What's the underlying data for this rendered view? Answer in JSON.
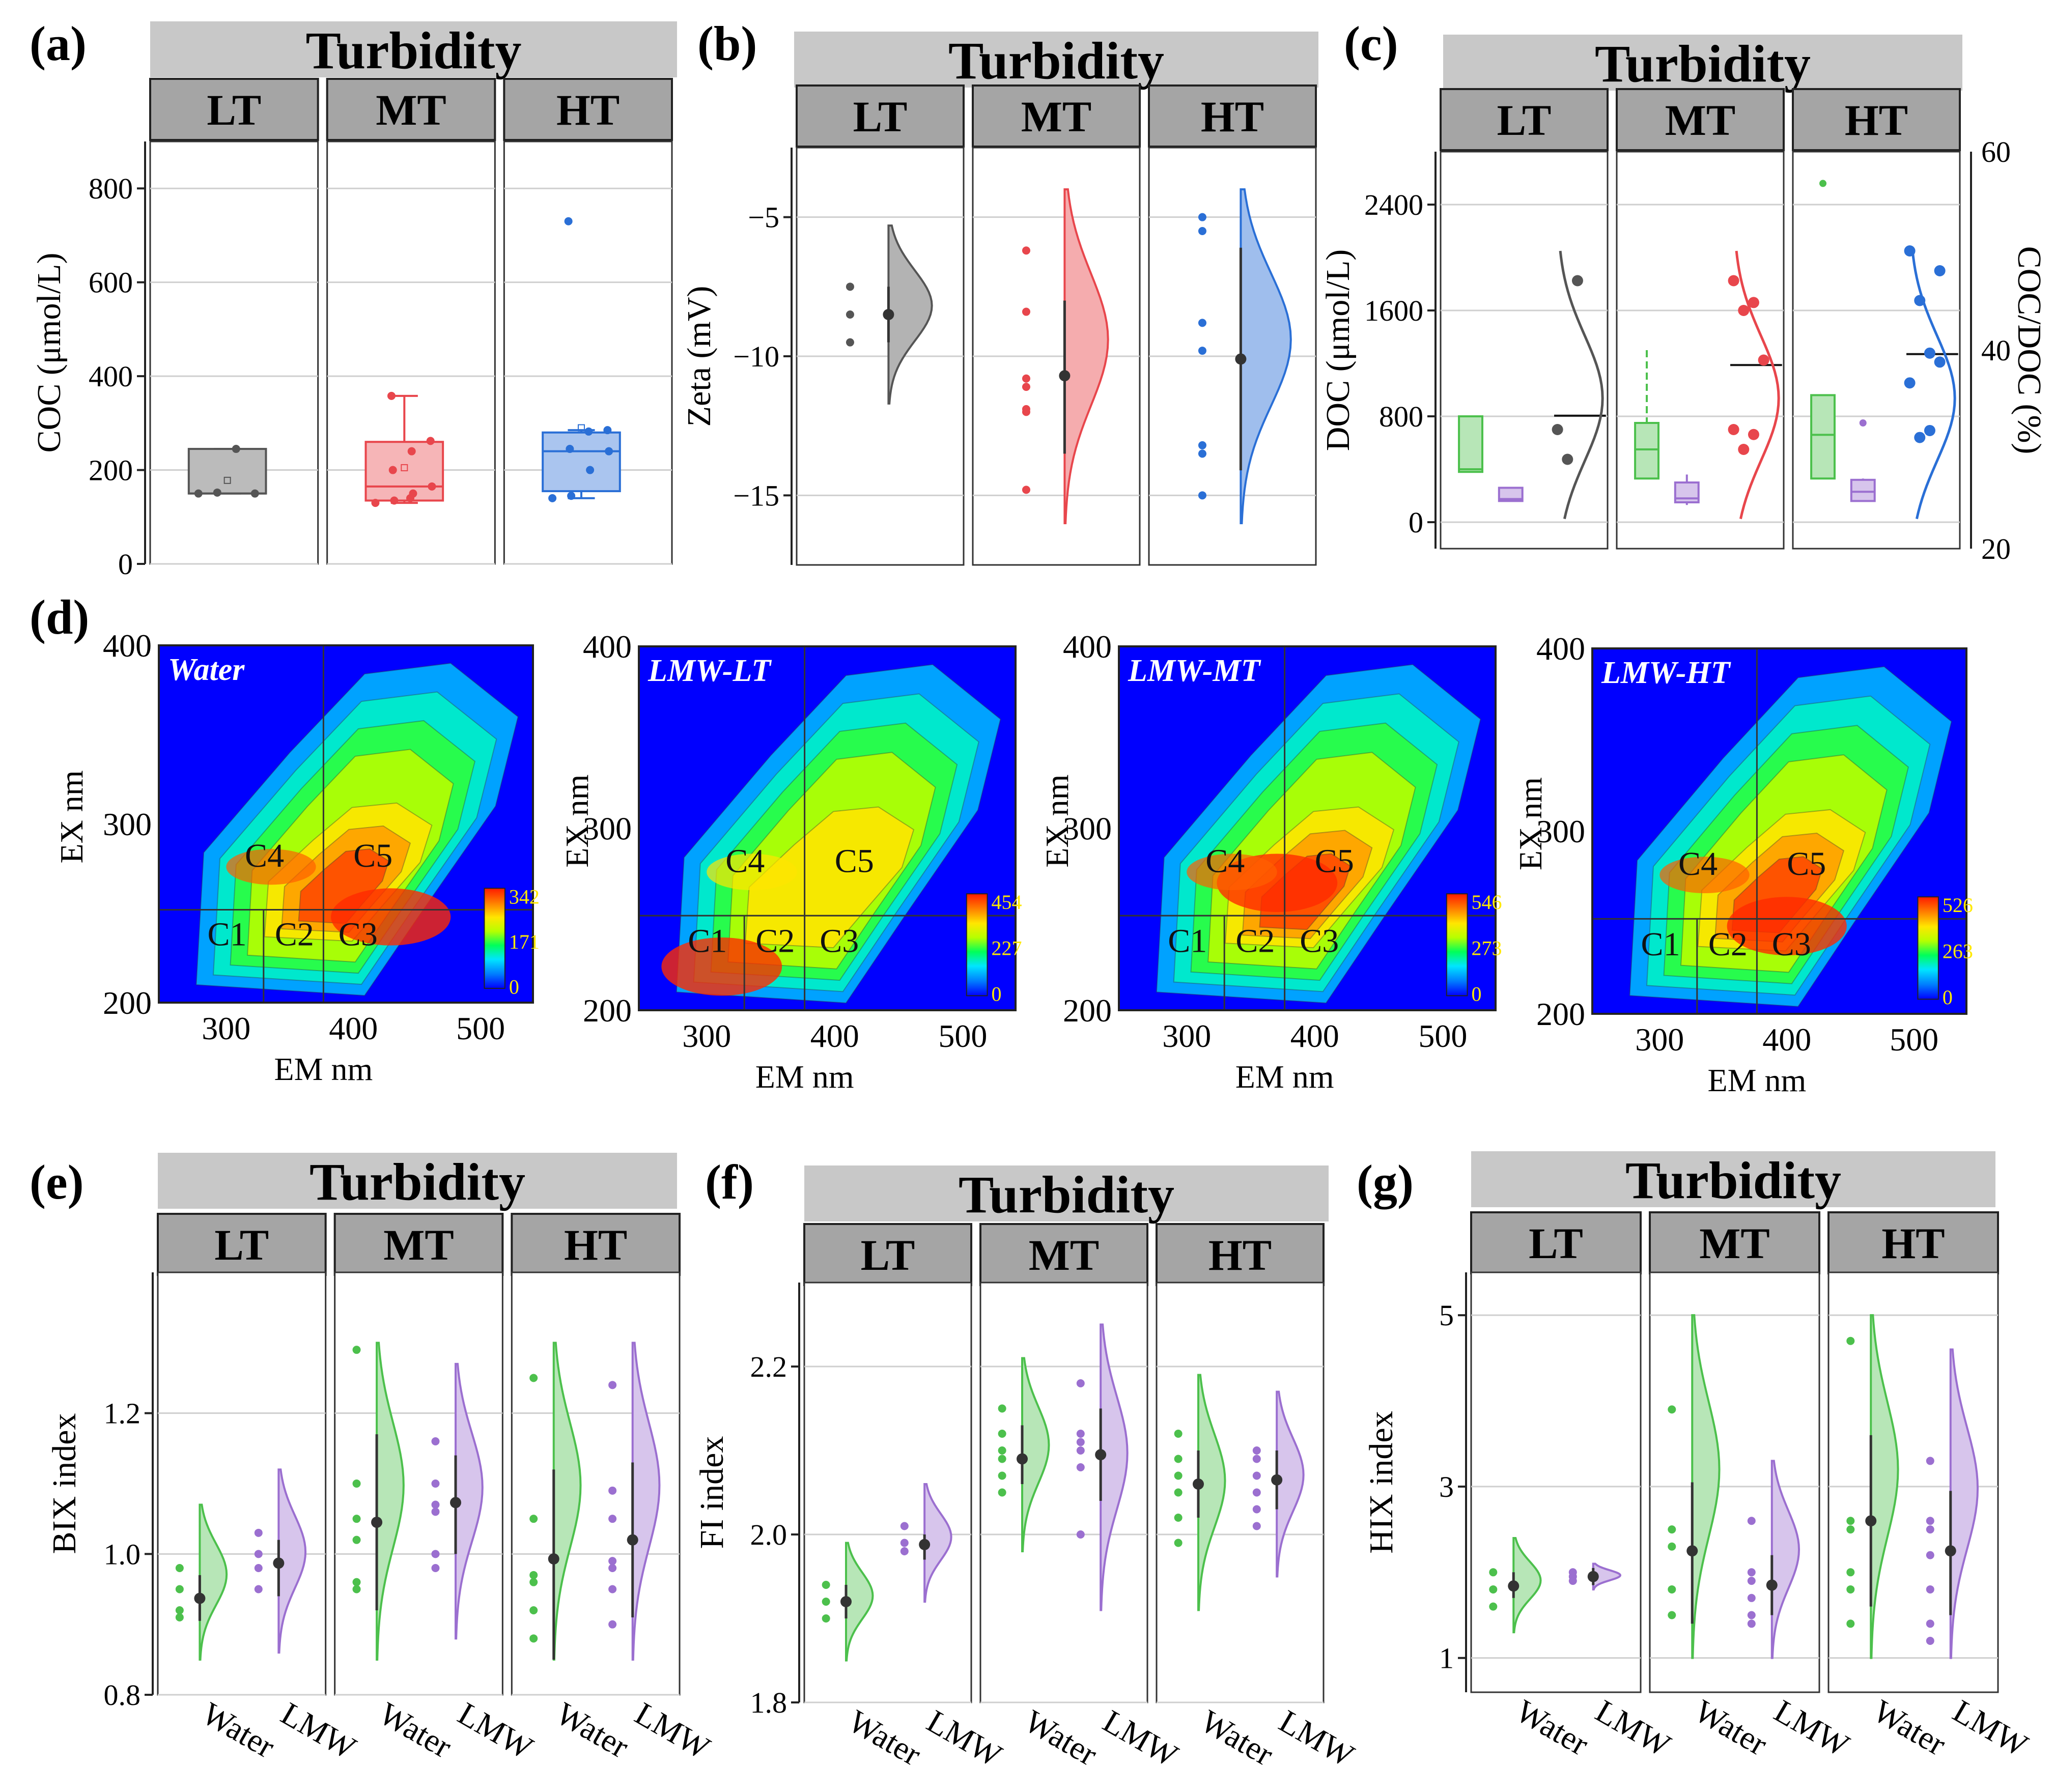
{
  "figure": {
    "strip_title": "Turbidity",
    "facets": [
      "LT",
      "MT",
      "HT"
    ],
    "x_categories": [
      "Water",
      "LMW"
    ]
  },
  "colors": {
    "LT": "#555555",
    "MT": "#e8464c",
    "HT": "#2a6fd6",
    "Water": "#4cc04c",
    "LMW": "#9b6fd0",
    "strip_bg": "#c8c8c8",
    "facet_bg": "#a5a5a5"
  },
  "chart_data": [
    {
      "id": "a",
      "panel_label": "(a)",
      "type": "box",
      "ylabel": "COC (μmol/L)",
      "ylim": [
        0,
        900
      ],
      "yticks": [
        0,
        200,
        400,
        600,
        800
      ],
      "groups": [
        {
          "facet": "LT",
          "q1": 150,
          "median": 150,
          "q3": 245,
          "whisker_low": 150,
          "whisker_high": 245,
          "mean": 178,
          "points": [
            150,
            152,
            245,
            150
          ]
        },
        {
          "facet": "MT",
          "q1": 135,
          "median": 165,
          "q3": 260,
          "whisker_low": 130,
          "whisker_high": 358,
          "mean": 205,
          "points": [
            130,
            135,
            150,
            165,
            200,
            240,
            262,
            358,
            140
          ]
        },
        {
          "facet": "HT",
          "q1": 155,
          "median": 240,
          "q3": 280,
          "whisker_low": 140,
          "whisker_high": 285,
          "mean": 290,
          "points": [
            140,
            145,
            200,
            240,
            245,
            282,
            285,
            730
          ]
        }
      ]
    },
    {
      "id": "b",
      "panel_label": "(b)",
      "type": "half-violin",
      "ylabel": "Zeta (mV)",
      "ylim": [
        -17.5,
        -2.5
      ],
      "yticks": [
        -15,
        -10,
        -5
      ],
      "groups": [
        {
          "facet": "LT",
          "points": [
            -7.5,
            -8.5,
            -9.5
          ],
          "mean": -8.5,
          "ci": [
            -7.5,
            -9.5
          ],
          "range": [
            -5.3,
            -11.7
          ]
        },
        {
          "facet": "MT",
          "points": [
            -6.2,
            -8.4,
            -10.8,
            -11.1,
            -11.9,
            -12.0,
            -14.8
          ],
          "mean": -10.7,
          "ci": [
            -8.0,
            -13.5
          ],
          "range": [
            -4.0,
            -16.0
          ]
        },
        {
          "facet": "HT",
          "points": [
            -5.0,
            -5.5,
            -8.8,
            -9.8,
            -13.2,
            -13.5,
            -15.0
          ],
          "mean": -10.1,
          "ci": [
            -6.1,
            -14.1
          ],
          "range": [
            -4.0,
            -16.0
          ]
        }
      ]
    },
    {
      "id": "c",
      "panel_label": "(c)",
      "type": "box+density",
      "ylabel": "DOC (μmol/L)",
      "ylabel_right": "COC/DOC (%)",
      "ylim": [
        -200,
        2800
      ],
      "yticks": [
        0,
        800,
        1600,
        2400
      ],
      "y2lim": [
        20,
        60
      ],
      "y2ticks": [
        20,
        40,
        60
      ],
      "groups": [
        {
          "facet": "LT",
          "water": {
            "q1": 380,
            "median": 400,
            "q3": 800,
            "low": 380,
            "high": 800,
            "mean": 520
          },
          "lmw": {
            "q1": 160,
            "median": 175,
            "q3": 260,
            "low": 160,
            "high": 260
          },
          "ratio_points": [
            32,
            29,
            47
          ],
          "ratio_mean": 33.4
        },
        {
          "facet": "MT",
          "water": {
            "q1": 330,
            "median": 550,
            "q3": 750,
            "low": 330,
            "high": 1300,
            "mean": 640
          },
          "lmw": {
            "q1": 150,
            "median": 180,
            "q3": 300,
            "low": 130,
            "high": 360
          },
          "ratio_points": [
            47,
            44,
            44.8,
            39,
            32,
            30,
            31.5
          ],
          "ratio_mean": 38.5
        },
        {
          "facet": "HT",
          "water": {
            "q1": 330,
            "median": 660,
            "q3": 960,
            "low": 330,
            "high": 960,
            "mean": 820
          },
          "lmw": {
            "q1": 160,
            "median": 230,
            "q3": 320,
            "low": 160,
            "high": 330
          },
          "outliers_water": [
            2560
          ],
          "outliers_lmw": [
            750
          ],
          "ratio_points": [
            50,
            45,
            39.7,
            38.8,
            36.7,
            31.2,
            31.9,
            48
          ],
          "ratio_mean": 39.6
        }
      ]
    },
    {
      "id": "d",
      "panel_label": "(d)",
      "type": "heatmap",
      "xlabel": "EM nm",
      "ylabel": "EX nm",
      "xticks": [
        300,
        400,
        500
      ],
      "yticks": [
        200,
        300,
        400
      ],
      "maps": [
        {
          "title": "Water",
          "cbar": [
            "342",
            "171",
            "0"
          ],
          "components": [
            "C1",
            "C2",
            "C3",
            "C4",
            "C5"
          ]
        },
        {
          "title": "LMW-LT",
          "cbar": [
            "454",
            "227",
            "0"
          ],
          "components": [
            "C1",
            "C2",
            "C3",
            "C4",
            "C5"
          ]
        },
        {
          "title": "LMW-MT",
          "cbar": [
            "546",
            "273",
            "0"
          ],
          "components": [
            "C1",
            "C2",
            "C3",
            "C4",
            "C5"
          ]
        },
        {
          "title": "LMW-HT",
          "cbar": [
            "526",
            "263",
            "0"
          ],
          "components": [
            "C1",
            "C2",
            "C3",
            "C4",
            "C5"
          ]
        }
      ]
    },
    {
      "id": "e",
      "panel_label": "(e)",
      "type": "half-violin",
      "ylabel": "BIX index",
      "ylim": [
        0.8,
        1.4
      ],
      "yticks": [
        0.8,
        1.0,
        1.2
      ],
      "ytick_labels": [
        "0.8",
        "1.0",
        "1.2"
      ],
      "groups": [
        {
          "facet": "LT",
          "water": {
            "points": [
              0.98,
              0.95,
              0.92,
              0.91
            ],
            "mean": 0.937,
            "ci": [
              0.905,
              0.97
            ],
            "range": [
              0.85,
              1.07
            ]
          },
          "lmw": {
            "points": [
              1.03,
              1.0,
              0.98,
              0.95
            ],
            "mean": 0.987,
            "ci": [
              0.94,
              1.02
            ],
            "range": [
              0.86,
              1.12
            ]
          }
        },
        {
          "facet": "MT",
          "water": {
            "points": [
              1.29,
              1.1,
              1.05,
              1.02,
              0.96,
              0.95
            ],
            "mean": 1.045,
            "ci": [
              0.92,
              1.17
            ],
            "range": [
              0.85,
              1.3
            ]
          },
          "lmw": {
            "points": [
              1.16,
              1.1,
              1.07,
              1.06,
              1.0,
              0.98
            ],
            "mean": 1.073,
            "ci": [
              1.0,
              1.14
            ],
            "range": [
              0.88,
              1.27
            ]
          }
        },
        {
          "facet": "HT",
          "water": {
            "points": [
              1.25,
              1.05,
              0.97,
              0.96,
              0.92,
              0.88
            ],
            "mean": 0.993,
            "ci": [
              0.85,
              1.12
            ],
            "range": [
              0.85,
              1.3
            ]
          },
          "lmw": {
            "points": [
              1.24,
              1.09,
              1.05,
              0.99,
              0.98,
              0.95,
              0.9
            ],
            "mean": 1.02,
            "ci": [
              0.91,
              1.13
            ],
            "range": [
              0.85,
              1.3
            ]
          }
        }
      ]
    },
    {
      "id": "f",
      "panel_label": "(f)",
      "type": "half-violin",
      "ylabel": "FI index",
      "ylim": [
        1.8,
        2.3
      ],
      "yticks": [
        1.8,
        2.0,
        2.2
      ],
      "ytick_labels": [
        "1.8",
        "2.0",
        "2.2"
      ],
      "groups": [
        {
          "facet": "LT",
          "water": {
            "points": [
              1.94,
              1.92,
              1.9
            ],
            "mean": 1.92,
            "ci": [
              1.9,
              1.94
            ],
            "range": [
              1.85,
              1.99
            ]
          },
          "lmw": {
            "points": [
              2.01,
              1.99,
              1.98
            ],
            "mean": 1.988,
            "ci": [
              1.97,
              2.0
            ],
            "range": [
              1.92,
              2.06
            ]
          }
        },
        {
          "facet": "MT",
          "water": {
            "points": [
              2.15,
              2.12,
              2.1,
              2.09,
              2.07,
              2.05
            ],
            "mean": 2.09,
            "ci": [
              2.06,
              2.13
            ],
            "range": [
              1.98,
              2.21
            ]
          },
          "lmw": {
            "points": [
              2.18,
              2.12,
              2.11,
              2.1,
              2.08,
              2.0
            ],
            "mean": 2.095,
            "ci": [
              2.04,
              2.15
            ],
            "range": [
              1.91,
              2.25
            ]
          }
        },
        {
          "facet": "HT",
          "water": {
            "points": [
              2.12,
              2.09,
              2.07,
              2.05,
              2.02,
              1.99
            ],
            "mean": 2.06,
            "ci": [
              2.02,
              2.1
            ],
            "range": [
              1.91,
              2.19
            ]
          },
          "lmw": {
            "points": [
              2.1,
              2.09,
              2.07,
              2.05,
              2.03,
              2.01
            ],
            "mean": 2.065,
            "ci": [
              2.03,
              2.1
            ],
            "range": [
              1.95,
              2.17
            ]
          }
        }
      ]
    },
    {
      "id": "g",
      "panel_label": "(g)",
      "type": "half-violin",
      "ylabel": "HIX index",
      "ylim": [
        0.6,
        5.5
      ],
      "yticks": [
        1,
        3,
        5
      ],
      "ytick_labels": [
        "1",
        "3",
        "5"
      ],
      "groups": [
        {
          "facet": "LT",
          "water": {
            "points": [
              2.0,
              1.8,
              1.6
            ],
            "mean": 1.84,
            "ci": [
              1.7,
              2.0
            ],
            "range": [
              1.3,
              2.4
            ]
          },
          "lmw": {
            "points": [
              2.0,
              1.95,
              1.9
            ],
            "mean": 1.95,
            "ci": [
              1.85,
              2.05
            ],
            "range": [
              1.8,
              2.1
            ]
          }
        },
        {
          "facet": "MT",
          "water": {
            "points": [
              3.9,
              2.5,
              2.3,
              1.8,
              1.5
            ],
            "mean": 2.25,
            "ci": [
              1.4,
              3.05
            ],
            "range": [
              1.0,
              5.0
            ]
          },
          "lmw": {
            "points": [
              2.6,
              2.0,
              1.9,
              1.7,
              1.5,
              1.4
            ],
            "mean": 1.85,
            "ci": [
              1.5,
              2.2
            ],
            "range": [
              1.0,
              3.3
            ]
          }
        },
        {
          "facet": "HT",
          "water": {
            "points": [
              4.7,
              2.6,
              2.5,
              2.0,
              1.8,
              1.4
            ],
            "mean": 2.6,
            "ci": [
              1.6,
              3.6
            ],
            "range": [
              1.0,
              5.0
            ]
          },
          "lmw": {
            "points": [
              3.3,
              2.6,
              2.5,
              2.2,
              1.8,
              1.4,
              1.2
            ],
            "mean": 2.25,
            "ci": [
              1.5,
              2.95
            ],
            "range": [
              1.0,
              4.6
            ]
          }
        }
      ]
    }
  ]
}
